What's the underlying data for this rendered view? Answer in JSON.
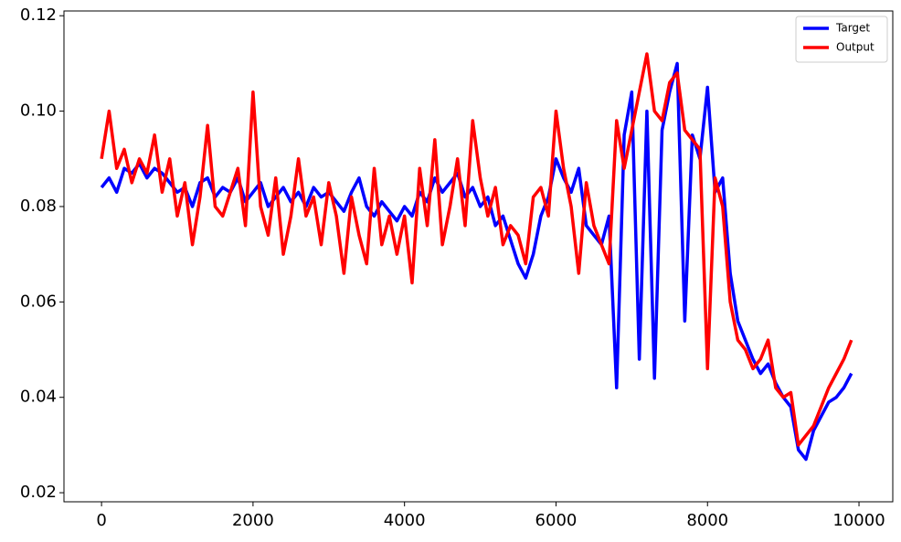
{
  "chart_data": {
    "type": "line",
    "x": [
      0,
      100,
      200,
      300,
      400,
      500,
      600,
      700,
      800,
      900,
      1000,
      1100,
      1200,
      1300,
      1400,
      1500,
      1600,
      1700,
      1800,
      1900,
      2000,
      2100,
      2200,
      2300,
      2400,
      2500,
      2600,
      2700,
      2800,
      2900,
      3000,
      3100,
      3200,
      3300,
      3400,
      3500,
      3600,
      3700,
      3800,
      3900,
      4000,
      4100,
      4200,
      4300,
      4400,
      4500,
      4600,
      4700,
      4800,
      4900,
      5000,
      5100,
      5200,
      5300,
      5400,
      5500,
      5600,
      5700,
      5800,
      5900,
      6000,
      6100,
      6200,
      6300,
      6400,
      6500,
      6600,
      6700,
      6800,
      6900,
      7000,
      7100,
      7200,
      7300,
      7400,
      7500,
      7600,
      7700,
      7800,
      7900,
      8000,
      8100,
      8200,
      8300,
      8400,
      8500,
      8600,
      8700,
      8800,
      8900,
      9000,
      9100,
      9200,
      9300,
      9400,
      9500,
      9600,
      9700,
      9800,
      9900
    ],
    "series": [
      {
        "name": "Target",
        "color": "#0000ff",
        "values": [
          0.084,
          0.086,
          0.083,
          0.088,
          0.087,
          0.089,
          0.086,
          0.088,
          0.087,
          0.085,
          0.083,
          0.084,
          0.08,
          0.085,
          0.086,
          0.082,
          0.084,
          0.083,
          0.086,
          0.081,
          0.083,
          0.085,
          0.08,
          0.082,
          0.084,
          0.081,
          0.083,
          0.08,
          0.084,
          0.082,
          0.083,
          0.081,
          0.079,
          0.083,
          0.086,
          0.08,
          0.078,
          0.081,
          0.079,
          0.077,
          0.08,
          0.078,
          0.083,
          0.081,
          0.086,
          0.083,
          0.085,
          0.087,
          0.082,
          0.084,
          0.08,
          0.082,
          0.076,
          0.078,
          0.073,
          0.068,
          0.065,
          0.07,
          0.078,
          0.082,
          0.09,
          0.086,
          0.083,
          0.088,
          0.076,
          0.074,
          0.072,
          0.078,
          0.042,
          0.095,
          0.104,
          0.048,
          0.1,
          0.044,
          0.096,
          0.104,
          0.11,
          0.056,
          0.095,
          0.09,
          0.105,
          0.083,
          0.086,
          0.066,
          0.056,
          0.052,
          0.048,
          0.045,
          0.047,
          0.043,
          0.04,
          0.038,
          0.029,
          0.027,
          0.033,
          0.036,
          0.039,
          0.04,
          0.042,
          0.045
        ]
      },
      {
        "name": "Output",
        "color": "#ff0000",
        "values": [
          0.09,
          0.1,
          0.088,
          0.092,
          0.085,
          0.09,
          0.087,
          0.095,
          0.083,
          0.09,
          0.078,
          0.085,
          0.072,
          0.082,
          0.097,
          0.08,
          0.078,
          0.083,
          0.088,
          0.076,
          0.104,
          0.08,
          0.074,
          0.086,
          0.07,
          0.078,
          0.09,
          0.078,
          0.082,
          0.072,
          0.085,
          0.078,
          0.066,
          0.082,
          0.074,
          0.068,
          0.088,
          0.072,
          0.078,
          0.07,
          0.078,
          0.064,
          0.088,
          0.076,
          0.094,
          0.072,
          0.08,
          0.09,
          0.076,
          0.098,
          0.086,
          0.078,
          0.084,
          0.072,
          0.076,
          0.074,
          0.068,
          0.082,
          0.084,
          0.078,
          0.1,
          0.088,
          0.08,
          0.066,
          0.085,
          0.076,
          0.072,
          0.068,
          0.098,
          0.088,
          0.096,
          0.104,
          0.112,
          0.1,
          0.098,
          0.106,
          0.108,
          0.096,
          0.094,
          0.092,
          0.046,
          0.086,
          0.08,
          0.06,
          0.052,
          0.05,
          0.046,
          0.048,
          0.052,
          0.042,
          0.04,
          0.041,
          0.03,
          0.032,
          0.034,
          0.038,
          0.042,
          0.045,
          0.048,
          0.052
        ]
      }
    ],
    "xlim": [
      -496,
      10446
    ],
    "ylim": [
      0.0181,
      0.121
    ],
    "xticks": [
      0,
      2000,
      4000,
      6000,
      8000,
      10000
    ],
    "yticks": [
      0.02,
      0.04,
      0.06,
      0.08,
      {
        "value": 0.1,
        "label": "0.10"
      },
      0.12
    ],
    "legend": "upper right"
  }
}
